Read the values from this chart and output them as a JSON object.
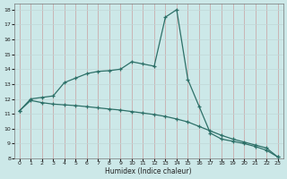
{
  "xlabel": "Humidex (Indice chaleur)",
  "bg_color": "#cce8e8",
  "grid_color": "#b0d0d0",
  "line_color": "#2d7068",
  "xlim": [
    -0.5,
    23.5
  ],
  "ylim": [
    8,
    18.4
  ],
  "xticks": [
    0,
    1,
    2,
    3,
    4,
    5,
    6,
    7,
    8,
    9,
    10,
    11,
    12,
    13,
    14,
    15,
    16,
    17,
    18,
    19,
    20,
    21,
    22,
    23
  ],
  "yticks": [
    8,
    9,
    10,
    11,
    12,
    13,
    14,
    15,
    16,
    17,
    18
  ],
  "upper_x": [
    0,
    1,
    2,
    3,
    4,
    5,
    6,
    7,
    8,
    9,
    10,
    11,
    12,
    13,
    14,
    15,
    16,
    17,
    18,
    19,
    20,
    21,
    22,
    23
  ],
  "upper_y": [
    11.2,
    12.0,
    12.1,
    12.2,
    13.1,
    13.4,
    13.7,
    13.85,
    13.9,
    14.0,
    14.5,
    14.35,
    14.2,
    17.5,
    18.0,
    13.3,
    11.5,
    9.7,
    9.3,
    9.15,
    9.0,
    8.8,
    8.55,
    8.1
  ],
  "lower_x": [
    0,
    1,
    2,
    3,
    4,
    5,
    6,
    7,
    8,
    9,
    10,
    11,
    12,
    13,
    14,
    15,
    16,
    17,
    18,
    19,
    20,
    21,
    22,
    23
  ],
  "lower_y": [
    11.2,
    11.9,
    11.75,
    11.65,
    11.6,
    11.55,
    11.48,
    11.4,
    11.32,
    11.25,
    11.15,
    11.05,
    10.95,
    10.82,
    10.65,
    10.45,
    10.15,
    9.85,
    9.55,
    9.3,
    9.1,
    8.9,
    8.7,
    8.1
  ]
}
